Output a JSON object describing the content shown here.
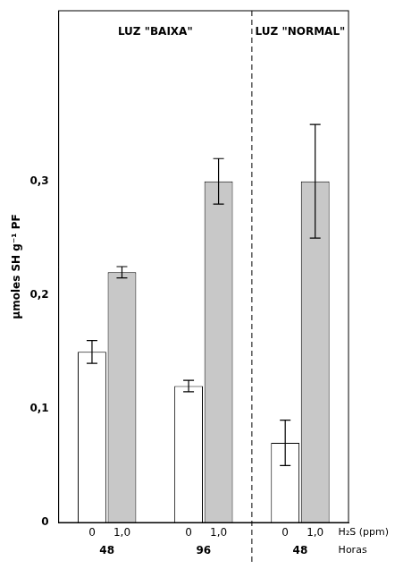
{
  "chart_data": {
    "type": "bar",
    "panels": [
      {
        "label": "LUZ \"BAIXA\"",
        "groups": [
          "48",
          "96"
        ]
      },
      {
        "label": "LUZ \"NORMAL\"",
        "groups": [
          "48"
        ]
      }
    ],
    "categories": [
      "0",
      "1,0",
      "0",
      "1,0",
      "0",
      "1,0"
    ],
    "values": [
      0.15,
      0.22,
      0.12,
      0.3,
      0.07,
      0.3
    ],
    "errors": [
      0.01,
      0.005,
      0.005,
      0.02,
      0.02,
      0.05
    ],
    "colors": [
      "#ffffff",
      "#c8c8c8",
      "#ffffff",
      "#c8c8c8",
      "#ffffff",
      "#c8c8c8"
    ],
    "x_label": "H₂S (ppm)",
    "x_label2": "Horas",
    "y_label": "µmoles SH g⁻¹ PF",
    "ylim": [
      0,
      0.45
    ],
    "yticks": [
      0,
      {
        "value": 0.1,
        "label": "0,1"
      },
      {
        "value": 0.2,
        "label": "0,2"
      },
      {
        "value": 0.3,
        "label": "0,3"
      }
    ],
    "grid": false
  }
}
